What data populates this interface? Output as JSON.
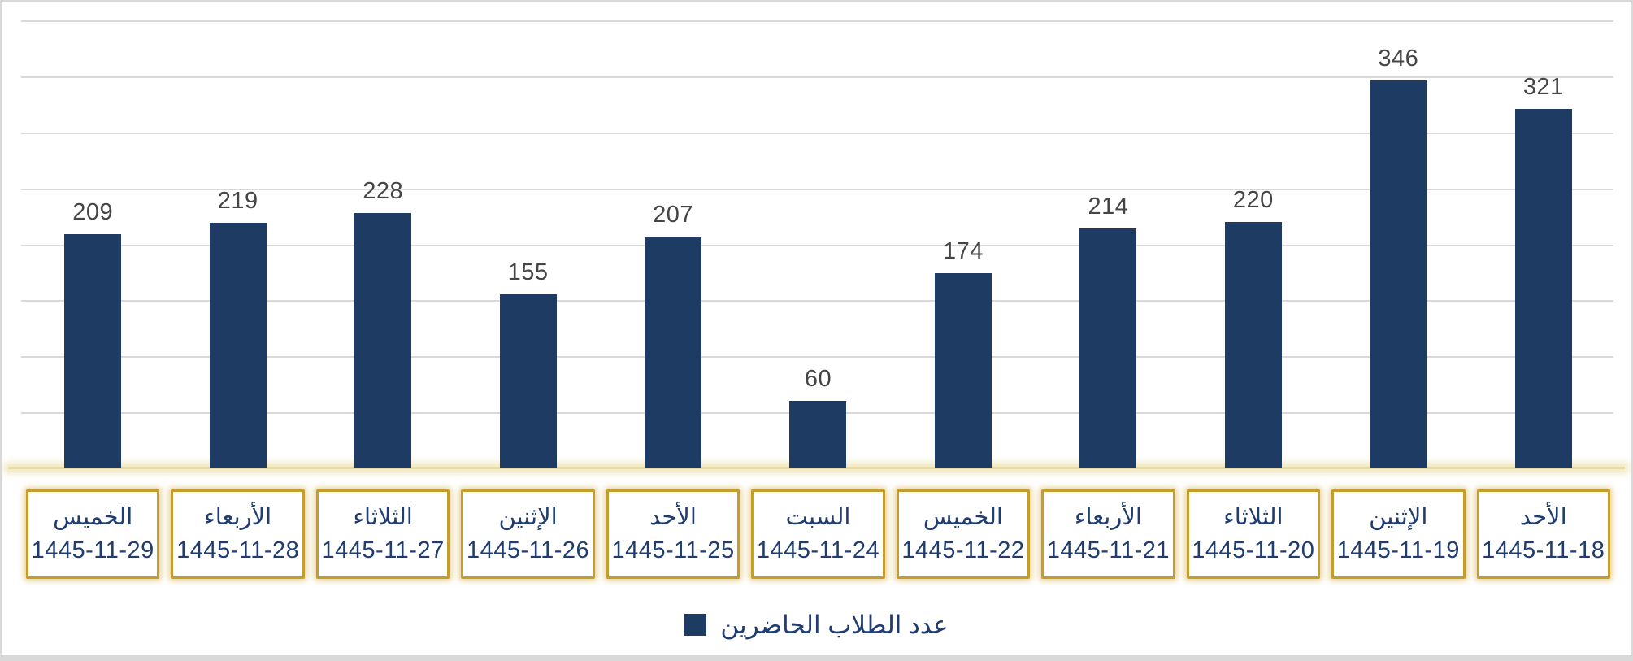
{
  "chart_data": {
    "type": "bar",
    "title": "",
    "legend": "عدد الطلاب الحاضرين",
    "legend_position": "bottom-center",
    "grid": true,
    "ylim": [
      0,
      400
    ],
    "gridline_step": 50,
    "bar_color": "#1E3C63",
    "bars": [
      {
        "day": "الخميس",
        "date": "1445-11-29",
        "value": 209
      },
      {
        "day": "الأربعاء",
        "date": "1445-11-28",
        "value": 219
      },
      {
        "day": "الثلاثاء",
        "date": "1445-11-27",
        "value": 228
      },
      {
        "day": "الإثنين",
        "date": "1445-11-26",
        "value": 155
      },
      {
        "day": "الأحد",
        "date": "1445-11-25",
        "value": 207
      },
      {
        "day": "السبت",
        "date": "1445-11-24",
        "value": 60
      },
      {
        "day": "الخميس",
        "date": "1445-11-22",
        "value": 174
      },
      {
        "day": "الأربعاء",
        "date": "1445-11-21",
        "value": 214
      },
      {
        "day": "الثلاثاء",
        "date": "1445-11-20",
        "value": 220
      },
      {
        "day": "الإثنين",
        "date": "1445-11-19",
        "value": 346
      },
      {
        "day": "الأحد",
        "date": "1445-11-18",
        "value": 321
      }
    ]
  },
  "colors": {
    "bar": "#1E3C63",
    "axis_text": "#1F3D6E",
    "value_label": "#454545",
    "gridline": "#D9D9D9",
    "frame_border": "#D9D9D9",
    "category_box_border": "#C49D2E",
    "baseline_glow": "#E7DCA9"
  }
}
